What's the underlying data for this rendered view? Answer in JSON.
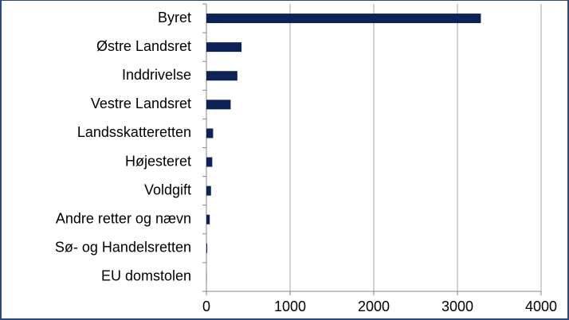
{
  "chart_data": {
    "type": "bar",
    "orientation": "horizontal",
    "categories": [
      "Byret",
      "Østre Landsret",
      "Inddrivelse",
      "Vestre Landsret",
      "Landsskatteretten",
      "Højesteret",
      "Voldgift",
      "Andre retter og nævn",
      "Sø- og Handelsretten",
      "EU domstolen"
    ],
    "values": [
      3280,
      420,
      370,
      290,
      80,
      70,
      55,
      40,
      10,
      2
    ],
    "color": "#0d2356",
    "xlim": [
      0,
      4000
    ],
    "xticks": [
      0,
      1000,
      2000,
      3000,
      4000
    ],
    "grid": true
  }
}
